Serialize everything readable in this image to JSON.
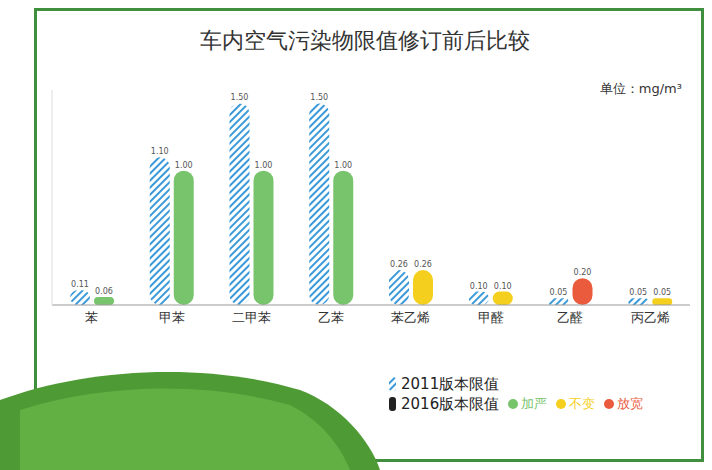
{
  "chart_data": {
    "type": "bar",
    "title": "车内空气污染物限值修订前后比较",
    "annotations": [
      "单位：mg/m³"
    ],
    "categories": [
      "苯",
      "甲苯",
      "二甲苯",
      "乙苯",
      "苯乙烯",
      "甲醛",
      "乙醛",
      "丙乙烯"
    ],
    "series": [
      {
        "name": "2011版本限值",
        "color": "#3a9ad9",
        "values": [
          0.11,
          1.1,
          1.5,
          1.5,
          0.26,
          0.1,
          0.05,
          0.05
        ],
        "value_labels": [
          "0.11",
          "1.10",
          "1.50",
          "1.50",
          "0.26",
          "0.10",
          "0.05",
          "0.05"
        ]
      },
      {
        "name": "2016版本限值",
        "color": "#222222",
        "colors": [
          "#78c46c",
          "#78c46c",
          "#78c46c",
          "#78c46c",
          "#f5cf1d",
          "#f5cf1d",
          "#ea5a3c",
          "#f5cf1d"
        ],
        "values": [
          0.06,
          1.0,
          1.0,
          1.0,
          0.26,
          0.1,
          0.2,
          0.05
        ],
        "value_labels": [
          "0.06",
          "1.00",
          "1.00",
          "1.00",
          "0.26",
          "0.10",
          "0.20",
          "0.05"
        ]
      }
    ],
    "status_legend": [
      {
        "name": "加严",
        "color": "#78c46c"
      },
      {
        "name": "不变",
        "color": "#f5cf1d"
      },
      {
        "name": "放宽",
        "color": "#ea5a3c"
      }
    ],
    "ylim": [
      0,
      1.6
    ],
    "data_labels": true,
    "tick_labels": "x",
    "grid": false,
    "legend": "bottom right"
  }
}
